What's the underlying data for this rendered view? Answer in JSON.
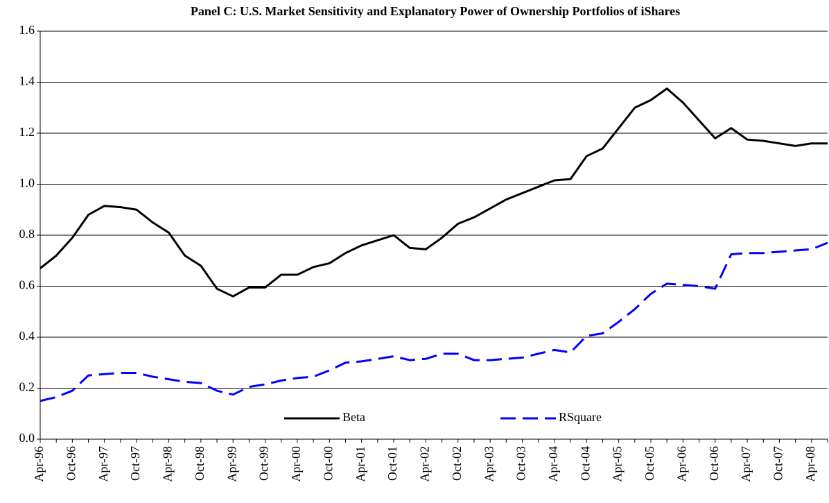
{
  "chart_data": {
    "type": "line",
    "title": "Panel C: U.S. Market Sensitivity and Explanatory Power of Ownership Portfolios of iShares",
    "categories": [
      "Apr-96",
      null,
      "Oct-96",
      null,
      "Apr-97",
      null,
      "Oct-97",
      null,
      "Apr-98",
      null,
      "Oct-98",
      null,
      "Apr-99",
      null,
      "Oct-99",
      null,
      "Apr-00",
      null,
      "Oct-00",
      null,
      "Apr-01",
      null,
      "Oct-01",
      null,
      "Apr-02",
      null,
      "Oct-02",
      null,
      "Apr-03",
      null,
      "Oct-03",
      null,
      "Apr-04",
      null,
      "Oct-04",
      null,
      "Apr-05",
      null,
      "Oct-05",
      null,
      "Apr-06",
      null,
      "Oct-06",
      null,
      "Apr-07",
      null,
      "Oct-07",
      null,
      "Apr-08",
      null
    ],
    "series": [
      {
        "name": "Beta",
        "color": "#000000",
        "style": "solid",
        "values": [
          0.67,
          0.72,
          0.79,
          0.88,
          0.915,
          0.91,
          0.9,
          0.85,
          0.81,
          0.72,
          0.68,
          0.59,
          0.56,
          0.595,
          0.595,
          0.645,
          0.645,
          0.675,
          0.69,
          0.73,
          0.76,
          0.78,
          0.8,
          0.75,
          0.745,
          0.79,
          0.845,
          0.87,
          0.905,
          0.94,
          0.965,
          0.99,
          1.015,
          1.02,
          1.11,
          1.14,
          1.22,
          1.3,
          1.33,
          1.375,
          1.32,
          1.25,
          1.18,
          1.22,
          1.175,
          1.17,
          1.16,
          1.15,
          1.16,
          1.16
        ]
      },
      {
        "name": "RSquare",
        "color": "#0000ff",
        "style": "dashed",
        "values": [
          0.15,
          0.165,
          0.19,
          0.25,
          0.255,
          0.26,
          0.26,
          0.245,
          0.235,
          0.225,
          0.22,
          0.19,
          0.175,
          0.205,
          0.215,
          0.23,
          0.24,
          0.245,
          0.27,
          0.3,
          0.305,
          0.315,
          0.325,
          0.31,
          0.315,
          0.335,
          0.335,
          0.31,
          0.31,
          0.315,
          0.32,
          0.335,
          0.35,
          0.34,
          0.405,
          0.415,
          0.46,
          0.51,
          0.57,
          0.61,
          0.605,
          0.6,
          0.59,
          0.725,
          0.73,
          0.73,
          0.735,
          0.74,
          0.745,
          0.77
        ]
      }
    ],
    "ylim": [
      0,
      1.6
    ],
    "yticks": [
      {
        "value": 0,
        "label": "0.0"
      },
      0.2,
      0.4,
      0.6,
      0.8,
      {
        "value": 1,
        "label": "1.0"
      },
      1.2,
      1.4,
      1.6
    ],
    "grid": true,
    "legend": "bottom-center"
  }
}
